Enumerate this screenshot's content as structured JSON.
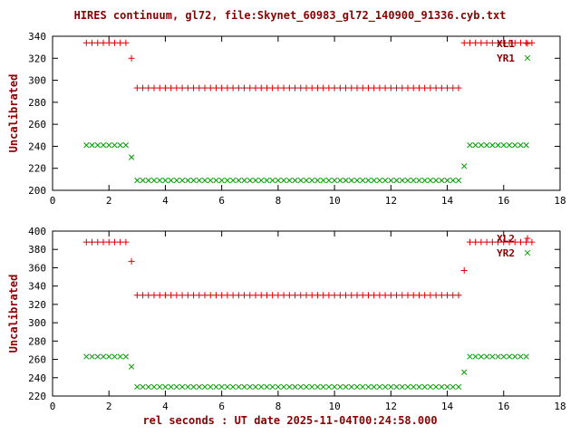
{
  "title": "HIRES continuum, gl72, file:Skynet_60983_gl72_140900_91336.cyb.txt",
  "xlabel": "rel seconds : UT date 2025-11-04T00:24:58.000",
  "colors": {
    "background": "#ffffff",
    "border": "#000000",
    "tick_text": "#000000",
    "label_text": "#8b0000",
    "series_red": "#dd0000",
    "series_green": "#00a000"
  },
  "chart_data": [
    {
      "type": "scatter",
      "panel": "top",
      "ylabel": "Uncalibrated",
      "xlim": [
        0,
        18
      ],
      "ylim": [
        200,
        340
      ],
      "xticks": [
        0,
        2,
        4,
        6,
        8,
        10,
        12,
        14,
        16,
        18
      ],
      "yticks": [
        200,
        220,
        240,
        260,
        280,
        300,
        320,
        340
      ],
      "grid": false,
      "legend_position": "top-right",
      "series": [
        {
          "name": "XL1",
          "marker": "plus",
          "color": "#dd0000",
          "runs": [
            {
              "x_from": 1.2,
              "x_to": 2.6,
              "x_step": 0.2,
              "y": 334
            },
            {
              "x_from": 2.8,
              "x_to": 2.8,
              "x_step": 0.2,
              "y": 320
            },
            {
              "x_from": 3.0,
              "x_to": 14.4,
              "x_step": 0.2,
              "y": 293
            },
            {
              "x_from": 14.6,
              "x_to": 17.0,
              "x_step": 0.2,
              "y": 334
            }
          ]
        },
        {
          "name": "YR1",
          "marker": "cross",
          "color": "#00a000",
          "runs": [
            {
              "x_from": 1.2,
              "x_to": 2.6,
              "x_step": 0.2,
              "y": 241
            },
            {
              "x_from": 2.8,
              "x_to": 2.8,
              "x_step": 0.2,
              "y": 230
            },
            {
              "x_from": 3.0,
              "x_to": 14.4,
              "x_step": 0.2,
              "y": 209
            },
            {
              "x_from": 14.6,
              "x_to": 14.6,
              "x_step": 0.2,
              "y": 222
            },
            {
              "x_from": 14.8,
              "x_to": 16.8,
              "x_step": 0.2,
              "y": 241
            }
          ]
        }
      ]
    },
    {
      "type": "scatter",
      "panel": "bottom",
      "ylabel": "Uncalibrated",
      "xlim": [
        0,
        18
      ],
      "ylim": [
        220,
        400
      ],
      "xticks": [
        0,
        2,
        4,
        6,
        8,
        10,
        12,
        14,
        16,
        18
      ],
      "yticks": [
        220,
        240,
        260,
        280,
        300,
        320,
        340,
        360,
        380,
        400
      ],
      "grid": false,
      "legend_position": "top-right",
      "series": [
        {
          "name": "XL2",
          "marker": "plus",
          "color": "#dd0000",
          "runs": [
            {
              "x_from": 1.2,
              "x_to": 2.6,
              "x_step": 0.2,
              "y": 388
            },
            {
              "x_from": 2.8,
              "x_to": 2.8,
              "x_step": 0.2,
              "y": 367
            },
            {
              "x_from": 3.0,
              "x_to": 14.4,
              "x_step": 0.2,
              "y": 330
            },
            {
              "x_from": 14.6,
              "x_to": 14.6,
              "x_step": 0.2,
              "y": 357
            },
            {
              "x_from": 14.8,
              "x_to": 17.0,
              "x_step": 0.2,
              "y": 388
            }
          ]
        },
        {
          "name": "YR2",
          "marker": "cross",
          "color": "#00a000",
          "runs": [
            {
              "x_from": 1.2,
              "x_to": 2.6,
              "x_step": 0.2,
              "y": 263
            },
            {
              "x_from": 2.8,
              "x_to": 2.8,
              "x_step": 0.2,
              "y": 252
            },
            {
              "x_from": 3.0,
              "x_to": 14.4,
              "x_step": 0.2,
              "y": 230
            },
            {
              "x_from": 14.6,
              "x_to": 14.6,
              "x_step": 0.2,
              "y": 246
            },
            {
              "x_from": 14.8,
              "x_to": 16.8,
              "x_step": 0.2,
              "y": 263
            }
          ]
        }
      ]
    }
  ]
}
